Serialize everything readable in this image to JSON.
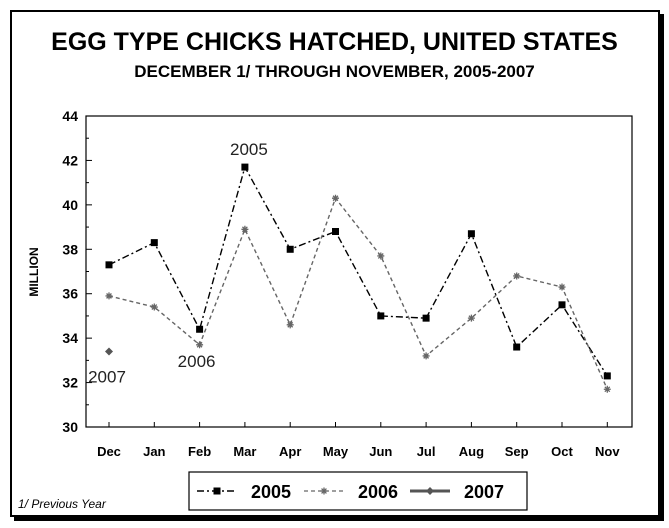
{
  "header": {
    "title": "EGG TYPE CHICKS HATCHED, UNITED STATES",
    "subtitle": "DECEMBER 1/ THROUGH NOVEMBER, 2005-2007"
  },
  "footnote": "1/ Previous Year",
  "chart_data": {
    "type": "line",
    "ylabel": "MILLION",
    "ylim": [
      30,
      44
    ],
    "yticks": [
      30,
      32,
      34,
      36,
      38,
      40,
      42,
      44
    ],
    "categories": [
      "Dec",
      "Jan",
      "Feb",
      "Mar",
      "Apr",
      "May",
      "Jun",
      "Jul",
      "Aug",
      "Sep",
      "Oct",
      "Nov"
    ],
    "series": [
      {
        "name": "2005",
        "values": [
          37.3,
          38.3,
          34.4,
          41.7,
          38.0,
          38.8,
          35.0,
          34.9,
          38.7,
          33.6,
          35.5,
          32.3
        ],
        "style": "dash-dot",
        "marker": "square",
        "color": "#000000"
      },
      {
        "name": "2006",
        "values": [
          35.9,
          35.4,
          33.7,
          38.9,
          34.6,
          40.3,
          37.7,
          33.2,
          34.9,
          36.8,
          36.3,
          31.7
        ],
        "style": "dashed",
        "marker": "star",
        "color": "#666666"
      },
      {
        "name": "2007",
        "values": [
          33.4,
          null,
          null,
          null,
          null,
          null,
          null,
          null,
          null,
          null,
          null,
          null
        ],
        "style": "solid",
        "marker": "diamond",
        "color": "#555555"
      }
    ],
    "annotations": [
      {
        "text": "2005",
        "series": "2005",
        "category": "Mar"
      },
      {
        "text": "2006",
        "series": "2006",
        "category": "Feb"
      },
      {
        "text": "2007",
        "series": "2007",
        "category": "Dec"
      }
    ],
    "grid": false,
    "legend": "bottom"
  }
}
